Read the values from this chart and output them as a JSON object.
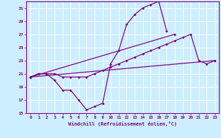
{
  "xlabel": "Windchill (Refroidissement éolien,°C)",
  "background_color": "#cceeff",
  "grid_color": "#ffffff",
  "line_color": "#800080",
  "xlim": [
    -0.5,
    23.5
  ],
  "ylim": [
    15,
    32
  ],
  "yticks": [
    15,
    17,
    19,
    21,
    23,
    25,
    27,
    29,
    31
  ],
  "xticks": [
    0,
    1,
    2,
    3,
    4,
    5,
    6,
    7,
    8,
    9,
    10,
    11,
    12,
    13,
    14,
    15,
    16,
    17,
    18,
    19,
    20,
    21,
    22,
    23
  ],
  "curve1_x": [
    0,
    1,
    2,
    3,
    4,
    5,
    6,
    7,
    8,
    9,
    10,
    11,
    12,
    13,
    14,
    15,
    16,
    17
  ],
  "curve1_y": [
    20.5,
    21.0,
    21.0,
    20.0,
    18.5,
    18.5,
    17.0,
    15.5,
    16.0,
    16.5,
    22.5,
    24.5,
    28.5,
    30.0,
    31.0,
    31.5,
    32.0,
    27.5
  ],
  "line1_x": [
    0,
    23
  ],
  "line1_y": [
    20.5,
    23.0
  ],
  "line2_x": [
    0,
    18
  ],
  "line2_y": [
    20.5,
    27.0
  ],
  "curve2_x": [
    0,
    1,
    2,
    3,
    4,
    5,
    6,
    7,
    8,
    9,
    10,
    11,
    12,
    13,
    14,
    15,
    16,
    17,
    18,
    19,
    20,
    21,
    22,
    23
  ],
  "curve2_y": [
    20.5,
    21.0,
    21.0,
    21.0,
    20.5,
    20.5,
    20.5,
    20.5,
    21.0,
    21.5,
    22.0,
    22.5,
    23.0,
    23.5,
    24.0,
    24.5,
    25.0,
    25.5,
    26.0,
    26.5,
    27.0,
    23.0,
    22.5,
    23.0
  ]
}
